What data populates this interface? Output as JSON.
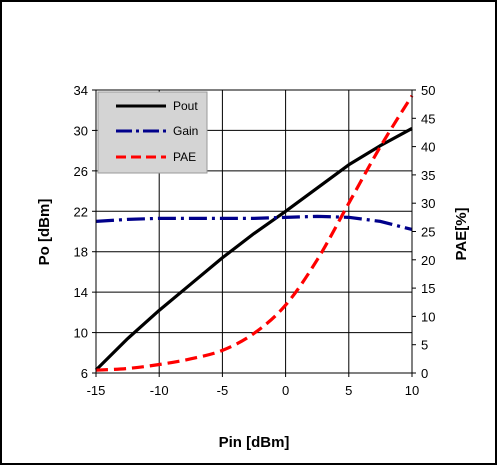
{
  "chart_data": {
    "type": "line",
    "xlabel": "Pin [dBm]",
    "ylabel": "Po [dBm]",
    "y2label": "PAE[%]",
    "xlim": [
      -15,
      10
    ],
    "ylim": [
      6,
      34
    ],
    "y2lim": [
      0,
      50
    ],
    "x_ticks": [
      -15,
      -10,
      -5,
      0,
      5,
      10
    ],
    "y_ticks": [
      6,
      10,
      14,
      18,
      22,
      26,
      30,
      34
    ],
    "y2_ticks": [
      0,
      5,
      10,
      15,
      20,
      25,
      30,
      35,
      40,
      45,
      50
    ],
    "grid": true,
    "legend_position": "top-left",
    "series": [
      {
        "name": "Pout",
        "axis": "left",
        "color": "#000000",
        "style": "solid",
        "x": [
          -15,
          -12.5,
          -10,
          -7.5,
          -5,
          -2.5,
          0,
          2.5,
          5,
          7.5,
          10
        ],
        "y": [
          6.3,
          9.4,
          12.2,
          14.8,
          17.4,
          19.8,
          22.0,
          24.3,
          26.6,
          28.5,
          30.2
        ]
      },
      {
        "name": "Gain",
        "axis": "left",
        "color": "#00008B",
        "style": "dashdot",
        "x": [
          -15,
          -12.5,
          -10,
          -7.5,
          -5,
          -2.5,
          0,
          2.5,
          5,
          7.5,
          10
        ],
        "y": [
          21.0,
          21.2,
          21.3,
          21.3,
          21.3,
          21.3,
          21.4,
          21.5,
          21.4,
          21.0,
          20.2
        ]
      },
      {
        "name": "PAE",
        "axis": "right",
        "color": "#FF0000",
        "style": "dashed",
        "x": [
          -15,
          -12.5,
          -10,
          -7.5,
          -5,
          -2.5,
          0,
          2.5,
          5,
          7.5,
          10
        ],
        "y": [
          0.5,
          0.8,
          1.5,
          2.5,
          4.0,
          7.0,
          12.0,
          20.0,
          30.0,
          40.0,
          49.0
        ]
      }
    ]
  }
}
